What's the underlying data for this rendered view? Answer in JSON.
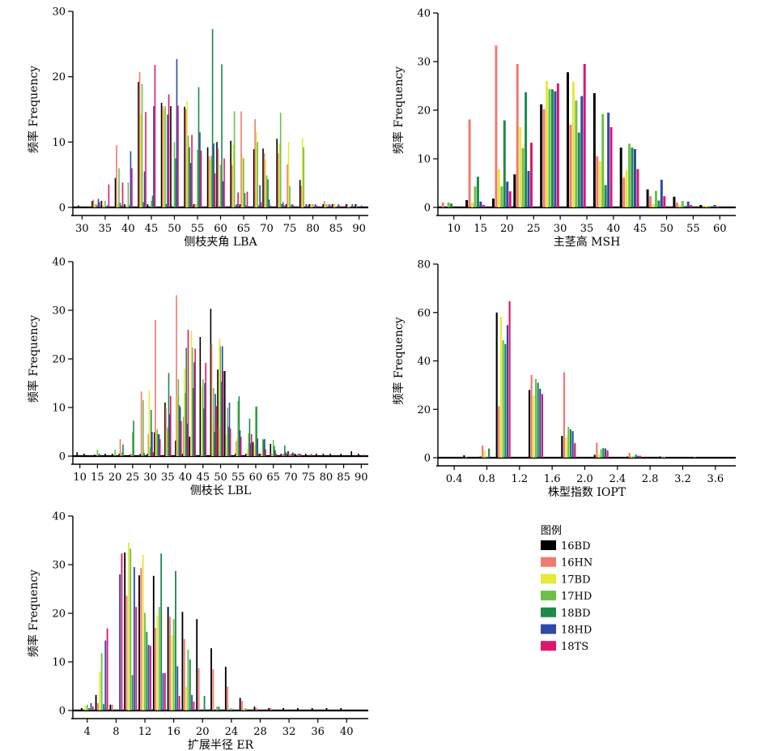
{
  "colors": {
    "16BD": "#000000",
    "16HN": "#f07a70",
    "17BD": "#e8e83a",
    "17HD": "#6cc04a",
    "18BD": "#1d8a4a",
    "18HD": "#2e4aa8",
    "18TS": "#e0166e"
  },
  "legend": {
    "title": "图例",
    "items": [
      "16BD",
      "16HN",
      "17BD",
      "17HD",
      "18BD",
      "18HD",
      "18TS"
    ]
  },
  "chart_data": [
    {
      "type": "bar",
      "xlabel": "侧枝夹角 LBA",
      "ylabel": "频率 Frequency",
      "xticks": [
        30,
        35,
        40,
        45,
        50,
        55,
        60,
        65,
        70,
        75,
        80,
        85,
        90
      ],
      "yticks": [
        0,
        10,
        20,
        30
      ],
      "ylim": [
        0,
        30
      ],
      "xlim": [
        28,
        92
      ],
      "x": [
        30,
        33,
        35,
        38,
        40,
        43,
        45,
        48,
        50,
        53,
        55,
        58,
        60,
        63,
        65,
        68,
        70,
        73,
        75,
        78,
        80,
        83,
        85,
        88,
        90
      ],
      "series": [
        {
          "name": "16BD",
          "values": [
            0.3,
            1,
            1,
            4.5,
            0.5,
            19.2,
            0.5,
            16,
            15.5,
            15.4,
            0.5,
            9.2,
            10,
            10.2,
            0.5,
            8.9,
            9,
            10.5,
            0.5,
            4.2,
            0.5,
            0.5,
            0.5,
            0.5,
            0.5
          ]
        },
        {
          "name": "16HN",
          "values": [
            0,
            1.2,
            0.3,
            9.5,
            0.3,
            20.7,
            0,
            15.5,
            0,
            15,
            0.5,
            7.8,
            9,
            6.5,
            14.7,
            13.5,
            8.3,
            8.3,
            6.6,
            3.3,
            0.5,
            1,
            0.5,
            0.5,
            0.5
          ]
        },
        {
          "name": "17BD",
          "values": [
            0,
            0.3,
            0.2,
            0.5,
            0.2,
            14.2,
            0,
            15,
            0,
            16.3,
            0.5,
            7.3,
            0,
            9.5,
            8,
            11.6,
            7.3,
            9.7,
            10,
            10.6,
            0.5,
            0.5,
            0.5,
            0.2,
            0
          ]
        },
        {
          "name": "17HD",
          "values": [
            0,
            0.5,
            1,
            6,
            3.8,
            18.9,
            1,
            15.5,
            10,
            11,
            8.8,
            7.9,
            6.5,
            14.7,
            7.5,
            10,
            4.9,
            14.5,
            3.3,
            9.2,
            0.5,
            0.5,
            0.2,
            0.2,
            0
          ]
        },
        {
          "name": "18BD",
          "values": [
            0,
            0.3,
            0.2,
            0.7,
            0.3,
            0.8,
            1.8,
            0.5,
            7.5,
            9.2,
            18.4,
            27.3,
            21.9,
            0.3,
            2.2,
            0.3,
            4.3,
            0.5,
            0.3,
            0,
            0,
            0,
            0,
            0,
            0
          ]
        },
        {
          "name": "18HD",
          "values": [
            0,
            1.3,
            0.3,
            0.3,
            8.6,
            5.5,
            15.5,
            14.2,
            22.7,
            6.8,
            11.5,
            9.8,
            4,
            0.5,
            0.3,
            3.4,
            1.2,
            0.8,
            0.5,
            0.5,
            0.5,
            0.5,
            0.5,
            0.5,
            0.3
          ]
        },
        {
          "name": "18TS",
          "values": [
            0,
            0.8,
            3.5,
            3.8,
            6,
            14.6,
            21.8,
            17.3,
            15.6,
            11.1,
            8.7,
            5.2,
            7.5,
            2.3,
            2.4,
            0.8,
            0.3,
            0.3,
            0.3,
            0.3,
            0.3,
            0.3,
            0.3,
            0,
            0
          ]
        }
      ]
    },
    {
      "type": "bar",
      "xlabel": "主茎高 MSH",
      "ylabel": "频率 Frequency",
      "xticks": [
        10,
        15,
        20,
        25,
        30,
        35,
        40,
        45,
        50,
        55,
        60
      ],
      "yticks": [
        0,
        10,
        20,
        30,
        40
      ],
      "ylim": [
        0,
        40
      ],
      "xlim": [
        7,
        63
      ],
      "x": [
        9,
        14,
        19,
        23,
        28,
        33,
        38,
        43,
        48,
        53,
        58
      ],
      "series": [
        {
          "name": "16BD",
          "values": [
            0.2,
            1.5,
            1.8,
            6.8,
            21.2,
            27.8,
            23.5,
            12.3,
            3.7,
            2.2,
            0.5
          ]
        },
        {
          "name": "16HN",
          "values": [
            1,
            18.1,
            33.3,
            29.5,
            20.2,
            17,
            10.5,
            6.1,
            2.3,
            1,
            0.3
          ]
        },
        {
          "name": "17BD",
          "values": [
            0,
            1,
            7.9,
            16.5,
            26,
            25.8,
            9.5,
            7.7,
            0.7,
            0.5,
            0.3
          ]
        },
        {
          "name": "17HD",
          "values": [
            1,
            4.3,
            4.3,
            12.2,
            24.3,
            22,
            19.2,
            13.1,
            3.4,
            1.3,
            0.3
          ]
        },
        {
          "name": "18BD",
          "values": [
            0.8,
            6.3,
            17.9,
            23.7,
            24.3,
            15.4,
            4.6,
            12.3,
            1.4,
            0.3,
            0
          ]
        },
        {
          "name": "18HD",
          "values": [
            0,
            1.2,
            5.3,
            7.5,
            23.9,
            22.9,
            19.5,
            12,
            5.7,
            1.2,
            0.5
          ]
        },
        {
          "name": "18TS",
          "values": [
            0,
            0.5,
            3.3,
            13.3,
            25.5,
            29.5,
            16.5,
            7.9,
            2.3,
            0.5,
            0.2
          ]
        }
      ]
    },
    {
      "type": "bar",
      "xlabel": "侧枝长 LBL",
      "ylabel": "频率 Frequency",
      "xticks": [
        10,
        15,
        20,
        25,
        30,
        35,
        40,
        45,
        50,
        55,
        60,
        65,
        70,
        75,
        80,
        85,
        90
      ],
      "yticks": [
        0,
        10,
        20,
        30,
        40
      ],
      "ylim": [
        0,
        40
      ],
      "xlim": [
        8,
        92
      ],
      "x": [
        10,
        12,
        15,
        18,
        20,
        22,
        25,
        28,
        30,
        32,
        35,
        38,
        40,
        42,
        45,
        48,
        50,
        52,
        55,
        58,
        60,
        62,
        65,
        68,
        70,
        72,
        75,
        78,
        80,
        82,
        85,
        88,
        90
      ],
      "series": [
        {
          "name": "16BD",
          "values": [
            0.8,
            0.5,
            0.3,
            0.5,
            0.5,
            0.5,
            0.3,
            0.5,
            0.5,
            4.9,
            11,
            3.2,
            0.5,
            4,
            24.5,
            30.3,
            17.8,
            17.5,
            0.5,
            0.5,
            2.9,
            0.5,
            2.5,
            0.5,
            1,
            0.5,
            0.5,
            0.5,
            0.5,
            0.5,
            0.5,
            1,
            0.5
          ]
        },
        {
          "name": "16HN",
          "values": [
            0,
            0,
            0,
            0,
            0,
            3.5,
            0.5,
            13.3,
            4.5,
            28,
            9.8,
            33.1,
            8.1,
            0.3,
            0.5,
            23,
            5.8,
            0.5,
            3.1,
            0.5,
            1.3,
            0.3,
            0.5,
            0.5,
            0.5,
            0,
            0,
            0,
            0,
            0,
            0,
            0,
            0
          ]
        },
        {
          "name": "17BD",
          "values": [
            0,
            0,
            0,
            0,
            0,
            0,
            0,
            0,
            13.5,
            5,
            5.1,
            12.3,
            18,
            25.8,
            14.2,
            7.3,
            24.2,
            4.3,
            3.8,
            1.5,
            2.3,
            0.8,
            0.5,
            0,
            0,
            0,
            0,
            0,
            0,
            0,
            0,
            0,
            0
          ]
        },
        {
          "name": "17HD",
          "values": [
            0,
            0,
            1.3,
            0,
            1.3,
            0.8,
            4.9,
            11.5,
            1.8,
            5.5,
            5.9,
            15.8,
            13,
            22.3,
            15.8,
            14,
            22.6,
            9.9,
            11.3,
            4.7,
            10.2,
            3.5,
            3.3,
            0.5,
            0.5,
            0.5,
            0,
            0,
            0,
            0,
            0,
            0,
            0
          ]
        },
        {
          "name": "18BD",
          "values": [
            0,
            0,
            0,
            0,
            0,
            2.4,
            7.3,
            0.7,
            9.5,
            4.5,
            17.1,
            10.5,
            22.3,
            14,
            9.8,
            5,
            15.3,
            6.1,
            12.3,
            7.7,
            10.2,
            3.4,
            2.1,
            2.2,
            0.5,
            0.5,
            0,
            0,
            0,
            0,
            0,
            0,
            0
          ]
        },
        {
          "name": "18HD",
          "values": [
            0,
            0,
            0.5,
            0,
            0,
            0,
            0,
            0,
            5,
            4.5,
            8.6,
            10.1,
            6.7,
            19.3,
            15,
            12.8,
            22.6,
            11,
            5.3,
            2.6,
            3.6,
            3.5,
            1.2,
            0.8,
            0.8,
            0.3,
            0,
            0,
            0,
            0,
            0,
            0,
            0
          ]
        },
        {
          "name": "18TS",
          "values": [
            0,
            0,
            0,
            0,
            0,
            0,
            0,
            0,
            0.8,
            3.5,
            12.4,
            7.2,
            26,
            22.1,
            19.2,
            10.3,
            17.5,
            5.7,
            4,
            4.5,
            0.5,
            1.4,
            0.5,
            0.5,
            0.5,
            0.5,
            0.5,
            0,
            0,
            0,
            0,
            0,
            0.3
          ]
        }
      ]
    },
    {
      "type": "bar",
      "xlabel": "株型指数 IOPT",
      "ylabel": "频率 Frequency",
      "xticks": [
        0.4,
        0.8,
        1.2,
        1.6,
        2,
        2.4,
        2.8,
        3.2,
        3.6
      ],
      "xtick_labels": [
        "0.4",
        "0.8",
        "1.2",
        "1.6",
        "2.0",
        "2.4",
        "2.8",
        "3.2",
        "3.6"
      ],
      "yticks": [
        0,
        20,
        40,
        60,
        80
      ],
      "ylim": [
        0,
        80
      ],
      "xlim": [
        0.2,
        3.85
      ],
      "x": [
        0.6,
        0.8,
        1,
        1.4,
        1.8,
        2.2,
        2.6,
        3,
        3.4
      ],
      "series": [
        {
          "name": "16BD",
          "values": [
            1,
            0.5,
            60,
            28,
            9,
            1.2,
            0.5,
            0.5,
            0.3
          ]
        },
        {
          "name": "16HN",
          "values": [
            0.3,
            5,
            21.3,
            34.2,
            35.3,
            6.2,
            2,
            0.5,
            0.3
          ]
        },
        {
          "name": "17BD",
          "values": [
            0,
            3,
            58.2,
            25.7,
            8.3,
            1.3,
            0.8,
            0.3,
            0
          ]
        },
        {
          "name": "17HD",
          "values": [
            0,
            0.5,
            48.5,
            32.5,
            12.7,
            3.5,
            0.5,
            0,
            0
          ]
        },
        {
          "name": "18BD",
          "values": [
            0,
            3.8,
            47,
            31,
            11.7,
            4,
            1.3,
            0,
            0
          ]
        },
        {
          "name": "18HD",
          "values": [
            0,
            0,
            54.8,
            28.5,
            11,
            3.8,
            0.8,
            0,
            0
          ]
        },
        {
          "name": "18TS",
          "values": [
            0,
            0,
            64.7,
            26.3,
            6,
            3,
            0.8,
            0,
            0
          ]
        }
      ]
    },
    {
      "type": "bar",
      "xlabel": "扩展半径 ER",
      "ylabel": "频率 Frequency",
      "xticks": [
        4,
        8,
        12,
        16,
        20,
        24,
        28,
        32,
        36,
        40
      ],
      "yticks": [
        0,
        10,
        20,
        30,
        40
      ],
      "ylim": [
        0,
        40
      ],
      "xlim": [
        2,
        43
      ],
      "x": [
        4,
        6,
        8,
        10,
        12,
        14,
        16,
        18,
        20,
        22,
        24,
        26,
        28,
        30,
        32,
        34,
        36,
        38,
        40
      ],
      "series": [
        {
          "name": "16BD",
          "values": [
            0.5,
            3.2,
            1.2,
            32.5,
            27.8,
            27.7,
            21.3,
            20.3,
            18.8,
            12.8,
            9,
            2.6,
            0.8,
            0.5,
            0.5,
            0.5,
            0.5,
            0.5,
            0.5
          ]
        },
        {
          "name": "16HN",
          "values": [
            0,
            1.5,
            1.2,
            23.6,
            29.3,
            17,
            19.3,
            14.7,
            8.7,
            8.5,
            4.9,
            2,
            0.5,
            0.5,
            0,
            0,
            0,
            0,
            0
          ]
        },
        {
          "name": "17BD",
          "values": [
            1,
            8,
            0,
            34.5,
            32,
            19.5,
            15.5,
            4.9,
            0,
            0,
            0,
            0.5,
            0,
            0,
            0,
            0,
            0,
            0,
            0
          ]
        },
        {
          "name": "17HD",
          "values": [
            1.2,
            11.8,
            0,
            33.3,
            20.1,
            21.3,
            18.8,
            12.5,
            0,
            0.8,
            0.5,
            0.5,
            0,
            0,
            0,
            0,
            0,
            0,
            0
          ]
        },
        {
          "name": "18BD",
          "values": [
            0.5,
            1.3,
            0,
            7.3,
            16.2,
            32.3,
            28.7,
            10.5,
            3,
            0.8,
            0,
            0,
            0,
            0,
            0,
            0,
            0,
            0,
            0
          ]
        },
        {
          "name": "18HD",
          "values": [
            1.5,
            14.4,
            28,
            29.5,
            13.5,
            7.7,
            9.1,
            3.2,
            0,
            0,
            0,
            0,
            0,
            0,
            0,
            0,
            0,
            0,
            0
          ]
        },
        {
          "name": "18TS",
          "values": [
            0.8,
            16.9,
            32.3,
            21.3,
            13.3,
            7.7,
            3,
            1.8,
            0,
            0,
            0,
            0,
            0,
            0,
            0,
            0,
            0,
            0,
            0
          ]
        }
      ]
    }
  ]
}
